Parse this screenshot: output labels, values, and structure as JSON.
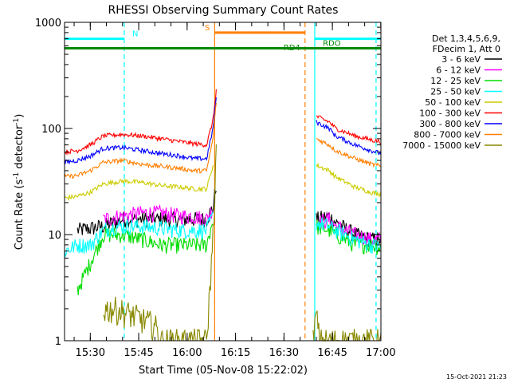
{
  "chart_data": {
    "type": "line",
    "title": "RHESSI Observing Summary Count Rates",
    "xlabel": "Start Time (05-Nov-08 15:22:02)",
    "ylabel": "Count Rate (s^-1 detector^-1)",
    "ylabel_main": "Count Rate (s",
    "ylabel_sup1": "-1",
    "ylabel_mid": " detector",
    "ylabel_sup2": "-1",
    "ylabel_end": ")",
    "y_scale": "log",
    "ylim": [
      1,
      1000
    ],
    "xlim_minutes": [
      0,
      98
    ],
    "xticks": [
      {
        "label": "15:30",
        "t": 7.97
      },
      {
        "label": "15:45",
        "t": 22.97
      },
      {
        "label": "16:00",
        "t": 37.97
      },
      {
        "label": "16:15",
        "t": 52.97
      },
      {
        "label": "16:30",
        "t": 67.97
      },
      {
        "label": "16:45",
        "t": 82.97
      },
      {
        "label": "17:00",
        "t": 97.97
      }
    ],
    "yticks": [
      {
        "label": "1",
        "v": 1
      },
      {
        "label": "10",
        "v": 10
      },
      {
        "label": "100",
        "v": 100
      },
      {
        "label": "1000",
        "v": 1000
      }
    ],
    "legend_header": [
      "Det 1,3,4,5,6,9,",
      "FDecim 1, Att 0"
    ],
    "legend_position": "right",
    "series": [
      {
        "name": "3 - 6 keV",
        "color": "#000000",
        "pts": [
          [
            4,
            11
          ],
          [
            12,
            12
          ],
          [
            18,
            14
          ],
          [
            24,
            14
          ],
          [
            30,
            14
          ],
          [
            36,
            14
          ],
          [
            40,
            14
          ],
          [
            44,
            14
          ],
          [
            45,
            16
          ],
          [
            46,
            18
          ],
          [
            47,
            30
          ]
        ],
        "pts2": [
          [
            78,
            14
          ],
          [
            82,
            15
          ],
          [
            84,
            13
          ],
          [
            90,
            10
          ],
          [
            95,
            9
          ],
          [
            98,
            9
          ]
        ]
      },
      {
        "name": "6 - 12 keV",
        "color": "#ff00ff",
        "pts": [
          [
            12,
            14
          ],
          [
            18,
            15
          ],
          [
            24,
            16
          ],
          [
            30,
            16
          ],
          [
            36,
            15
          ],
          [
            40,
            15
          ],
          [
            44,
            14
          ],
          [
            45,
            16
          ],
          [
            46,
            18
          ]
        ],
        "pts2": [
          [
            78,
            13
          ],
          [
            82,
            14
          ],
          [
            84,
            12
          ],
          [
            90,
            10
          ],
          [
            95,
            9
          ],
          [
            98,
            9
          ]
        ]
      },
      {
        "name": "12 - 25 keV",
        "color": "#00dd00",
        "pts": [
          [
            4,
            3
          ],
          [
            12,
            10
          ],
          [
            18,
            10
          ],
          [
            24,
            9
          ],
          [
            30,
            8
          ],
          [
            36,
            8
          ],
          [
            40,
            8
          ],
          [
            44,
            8
          ],
          [
            46,
            14
          ]
        ],
        "pts2": [
          [
            78,
            12
          ],
          [
            82,
            11
          ],
          [
            84,
            10
          ],
          [
            90,
            8
          ],
          [
            95,
            8
          ],
          [
            98,
            7.5
          ]
        ]
      },
      {
        "name": "25 - 50 keV",
        "color": "#00ffff",
        "pts": [
          [
            0,
            7
          ],
          [
            4,
            8
          ],
          [
            8,
            8
          ],
          [
            12,
            11
          ],
          [
            16,
            12
          ],
          [
            20,
            12
          ],
          [
            24,
            12
          ],
          [
            30,
            11.5
          ],
          [
            36,
            11
          ],
          [
            40,
            11
          ],
          [
            44,
            11
          ],
          [
            46,
            15
          ]
        ],
        "pts2": [
          [
            78,
            13
          ],
          [
            82,
            12
          ],
          [
            84,
            11
          ],
          [
            90,
            9
          ],
          [
            95,
            8
          ],
          [
            98,
            7.5
          ]
        ]
      },
      {
        "name": "50 - 100 keV",
        "color": "#cccc00",
        "pts": [
          [
            0,
            22
          ],
          [
            4,
            23
          ],
          [
            8,
            25
          ],
          [
            12,
            30
          ],
          [
            18,
            32
          ],
          [
            24,
            31
          ],
          [
            30,
            29
          ],
          [
            36,
            28
          ],
          [
            40,
            27
          ],
          [
            44,
            27
          ],
          [
            46,
            45
          ]
        ],
        "pts2": [
          [
            78,
            45
          ],
          [
            82,
            40
          ],
          [
            84,
            35
          ],
          [
            90,
            28
          ],
          [
            95,
            25
          ],
          [
            98,
            24
          ]
        ]
      },
      {
        "name": "100 - 300 keV",
        "color": "#ff0000",
        "pts": [
          [
            0,
            60
          ],
          [
            4,
            62
          ],
          [
            8,
            70
          ],
          [
            12,
            85
          ],
          [
            18,
            88
          ],
          [
            24,
            85
          ],
          [
            30,
            80
          ],
          [
            36,
            75
          ],
          [
            40,
            72
          ],
          [
            44,
            70
          ],
          [
            46,
            120
          ],
          [
            47,
            230
          ]
        ],
        "pts2": [
          [
            78,
            130
          ],
          [
            82,
            115
          ],
          [
            84,
            100
          ],
          [
            90,
            85
          ],
          [
            95,
            78
          ],
          [
            98,
            75
          ]
        ]
      },
      {
        "name": "300 - 800 keV",
        "color": "#0000ff",
        "pts": [
          [
            0,
            48
          ],
          [
            4,
            50
          ],
          [
            8,
            55
          ],
          [
            12,
            65
          ],
          [
            18,
            66
          ],
          [
            24,
            62
          ],
          [
            30,
            58
          ],
          [
            36,
            55
          ],
          [
            40,
            52
          ],
          [
            44,
            52
          ],
          [
            46,
            100
          ],
          [
            47,
            200
          ]
        ],
        "pts2": [
          [
            78,
            115
          ],
          [
            82,
            100
          ],
          [
            84,
            85
          ],
          [
            90,
            70
          ],
          [
            95,
            62
          ],
          [
            98,
            58
          ]
        ]
      },
      {
        "name": "800 - 7000 keV",
        "color": "#ff7f00",
        "pts": [
          [
            0,
            35
          ],
          [
            4,
            36
          ],
          [
            8,
            40
          ],
          [
            12,
            48
          ],
          [
            18,
            50
          ],
          [
            24,
            46
          ],
          [
            30,
            44
          ],
          [
            36,
            42
          ],
          [
            40,
            40
          ],
          [
            44,
            40
          ],
          [
            46,
            80
          ],
          [
            47,
            180
          ]
        ],
        "pts2": [
          [
            78,
            80
          ],
          [
            82,
            70
          ],
          [
            84,
            62
          ],
          [
            90,
            52
          ],
          [
            95,
            46
          ],
          [
            98,
            44
          ]
        ]
      },
      {
        "name": "7000 - 15000 keV",
        "color": "#888800",
        "pts": [
          [
            12,
            2
          ],
          [
            16,
            2
          ],
          [
            20,
            1.8
          ],
          [
            24,
            1.6
          ],
          [
            28,
            1.4
          ],
          [
            30,
            1
          ],
          [
            44,
            1
          ],
          [
            45,
            3
          ],
          [
            46,
            10
          ],
          [
            47,
            60
          ]
        ],
        "pts2": [
          [
            77,
            1
          ],
          [
            78,
            1.8
          ],
          [
            79,
            1
          ],
          [
            98,
            1
          ]
        ]
      }
    ],
    "gap_interval": [
      47.5,
      77.5
    ],
    "annotations": [
      {
        "label": "N",
        "color": "#00ffff",
        "start": 0,
        "end": 18.5,
        "level": 700
      },
      {
        "label": "S",
        "color": "#ff7f00",
        "start": 46.5,
        "end": 74.5,
        "level": 800
      },
      {
        "label": "",
        "color": "#00ffff",
        "start": 77.5,
        "end": 98,
        "level": 700
      },
      {
        "label": "RDO",
        "color": "#008800",
        "start": 0,
        "end": 98,
        "level": 570
      },
      {
        "label": "RD4",
        "color": "#008800",
        "start": 74,
        "end": 74,
        "level": 520
      }
    ],
    "vlines": [
      {
        "t": 18.5,
        "color": "#00ffff",
        "dash": true
      },
      {
        "t": 46.5,
        "color": "#ff7f00",
        "dash": false
      },
      {
        "t": 74.5,
        "color": "#ff7f00",
        "dash": true
      },
      {
        "t": 77.5,
        "color": "#00ffff",
        "dash": false
      },
      {
        "t": 96.5,
        "color": "#00ffff",
        "dash": true
      }
    ],
    "footer_date": "15-Oct-2021 21:23"
  }
}
